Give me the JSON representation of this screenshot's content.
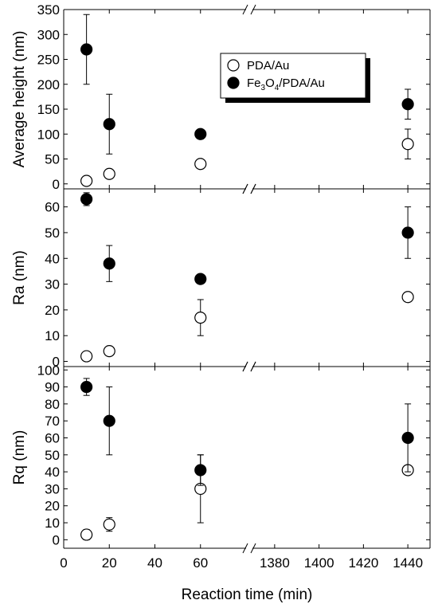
{
  "chart_data": {
    "type": "scatter",
    "xlabel": "Reaction time (min)",
    "x_ticks": {
      "left": [
        0,
        20,
        40,
        60
      ],
      "right": [
        1380,
        1400,
        1420,
        1440
      ]
    },
    "x_segments": {
      "left": [
        0,
        80
      ],
      "right": [
        1370,
        1450
      ]
    },
    "legend": {
      "placement": "top-right of top panel",
      "entries": [
        {
          "name": "PDA/Au",
          "marker": "open-circle"
        },
        {
          "name": "Fe3O4/PDA/Au",
          "marker": "filled-circle",
          "name_parts": [
            "Fe",
            "3",
            "O",
            "4",
            "/PDA/Au"
          ]
        }
      ]
    },
    "panels": [
      {
        "ylabel": "Average height (nm)",
        "ylim": [
          -10,
          350
        ],
        "yticks": [
          0,
          50,
          100,
          150,
          200,
          250,
          300,
          350
        ],
        "series": [
          {
            "name": "PDA/Au",
            "marker": "open",
            "x": [
              10,
              20,
              60,
              1440
            ],
            "y": [
              6,
              20,
              40,
              80
            ],
            "err": [
              5,
              5,
              0,
              30
            ]
          },
          {
            "name": "Fe3O4/PDA/Au",
            "marker": "filled",
            "x": [
              10,
              20,
              60,
              1440
            ],
            "y": [
              270,
              120,
              100,
              160
            ],
            "err": [
              70,
              60,
              0,
              30
            ]
          }
        ]
      },
      {
        "ylabel": "Ra (nm)",
        "ylim": [
          -2,
          67
        ],
        "yticks": [
          0,
          10,
          20,
          30,
          40,
          50,
          60
        ],
        "series": [
          {
            "name": "PDA/Au",
            "marker": "open",
            "x": [
              10,
              20,
              60,
              1440
            ],
            "y": [
              2,
              4,
              17,
              25
            ],
            "err": [
              0,
              0,
              7,
              0
            ]
          },
          {
            "name": "Fe3O4/PDA/Au",
            "marker": "filled",
            "x": [
              10,
              20,
              60,
              1440
            ],
            "y": [
              63,
              38,
              32,
              50
            ],
            "err": [
              2.5,
              7,
              0,
              10
            ]
          }
        ]
      },
      {
        "ylabel": "Rq (nm)",
        "ylim": [
          -5,
          102
        ],
        "yticks": [
          0,
          10,
          20,
          30,
          40,
          50,
          60,
          70,
          80,
          90,
          100
        ],
        "series": [
          {
            "name": "PDA/Au",
            "marker": "open",
            "x": [
              10,
              20,
              60,
              1440
            ],
            "y": [
              3,
              9,
              30,
              41
            ],
            "err": [
              3,
              4,
              20,
              2
            ]
          },
          {
            "name": "Fe3O4/PDA/Au",
            "marker": "filled",
            "x": [
              10,
              20,
              60,
              1440
            ],
            "y": [
              90,
              70,
              41,
              60
            ],
            "err": [
              5,
              20,
              9,
              20
            ]
          }
        ]
      }
    ]
  }
}
